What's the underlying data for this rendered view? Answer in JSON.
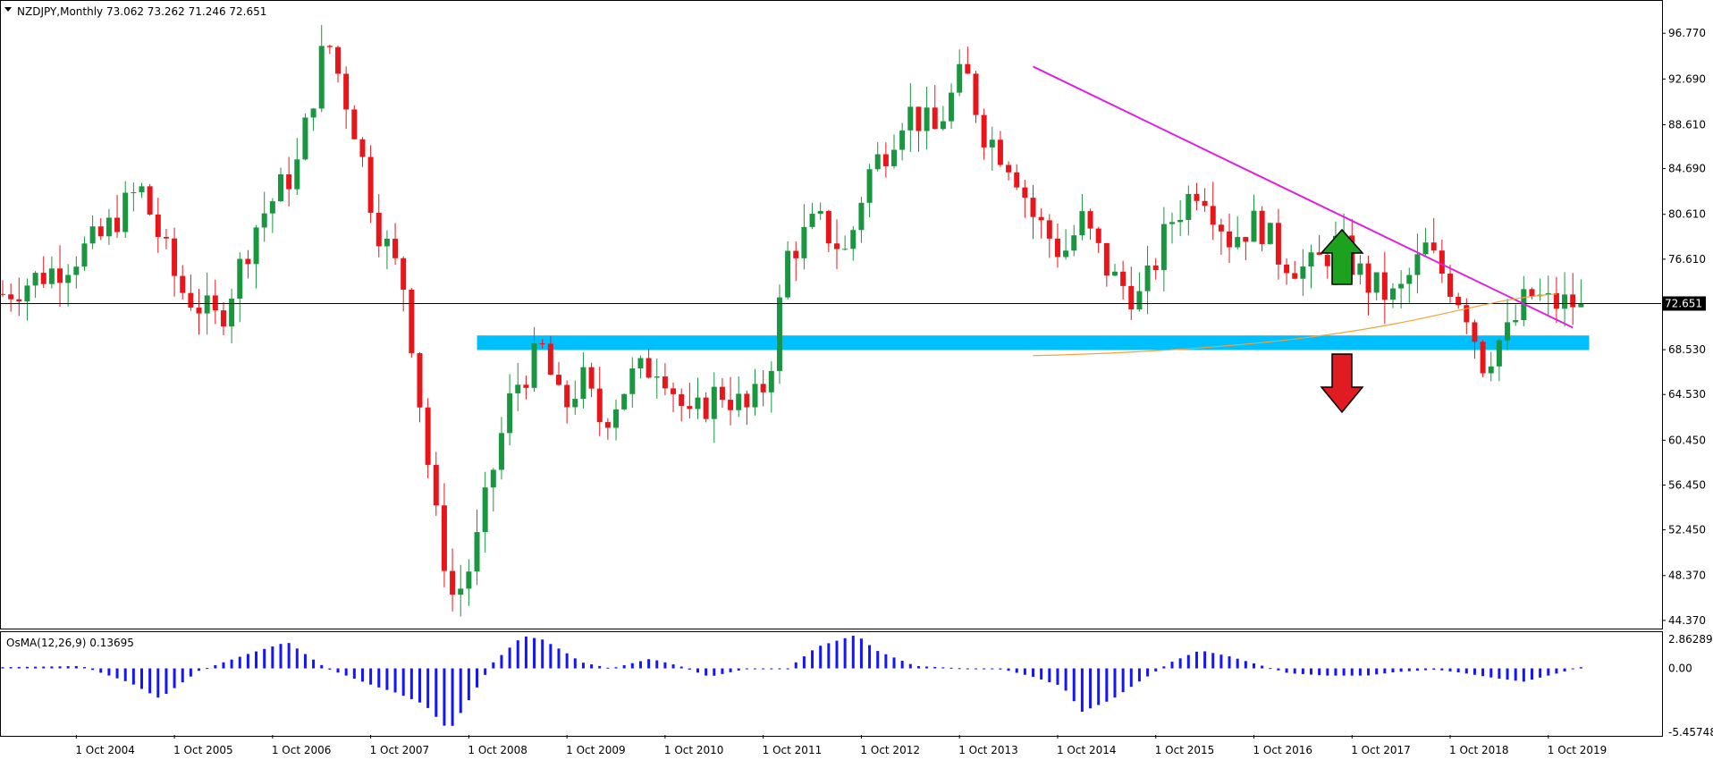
{
  "header": {
    "symbol_label": "NZDJPY,Monthly",
    "ohlc_label": "73.062 73.262 71.246 72.651"
  },
  "osma": {
    "label": "OsMA(12,26,9) 0.13695"
  },
  "colors": {
    "bull": "#1a9641",
    "bear": "#e8161b",
    "trendline": "#e020e0",
    "support_zone": "#00bfff",
    "ma": "#f2a33a",
    "osma_bars": "#1414ff",
    "arrow_up": "#1ca21c",
    "arrow_down": "#e11b22"
  },
  "chart_data": {
    "type": "candlestick",
    "title": "NZDJPY,Monthly",
    "price_axis_ticks": [
      "96.770",
      "92.690",
      "88.610",
      "84.690",
      "80.610",
      "76.610",
      "72.651",
      "68.530",
      "64.530",
      "60.450",
      "56.450",
      "52.450",
      "48.370",
      "44.370"
    ],
    "price_tick_values": [
      96.77,
      92.69,
      88.61,
      84.69,
      80.61,
      76.61,
      68.53,
      64.53,
      60.45,
      56.45,
      52.45,
      48.37,
      44.37
    ],
    "current_price_label": "72.651",
    "current_price": 72.651,
    "ylim": [
      43.8,
      99.5
    ],
    "x_labels": [
      "1 Oct 2004",
      "1 Oct 2005",
      "1 Oct 2006",
      "1 Oct 2007",
      "1 Oct 2008",
      "1 Oct 2009",
      "1 Oct 2010",
      "1 Oct 2011",
      "1 Oct 2012",
      "1 Oct 2013",
      "1 Oct 2014",
      "1 Oct 2015",
      "1 Oct 2016",
      "1 Oct 2017",
      "1 Oct 2018",
      "1 Oct 2019"
    ],
    "x_range_years": [
      2004.0,
      2020.9
    ],
    "candles_anchor": {
      "t": [
        2004.0,
        2004.6,
        2005.0,
        2005.4,
        2005.8,
        2006.2,
        2006.6,
        2007.0,
        2007.3,
        2007.6,
        2007.8,
        2008.1,
        2008.4,
        2008.6,
        2008.8,
        2009.0,
        2009.2,
        2009.5,
        2009.7,
        2009.9,
        2010.1,
        2010.4,
        2010.7,
        2011.0,
        2011.3,
        2011.6,
        2011.8,
        2012.0,
        2012.3,
        2012.6,
        2012.8,
        2013.0,
        2013.2,
        2013.5,
        2013.8,
        2014.0,
        2014.3,
        2014.5,
        2014.8,
        2015.0,
        2015.3,
        2015.6,
        2015.9,
        2016.2,
        2016.5,
        2016.8,
        2017.0,
        2017.3,
        2017.6,
        2017.9,
        2018.2,
        2018.5,
        2018.7,
        2018.9,
        2019.1,
        2019.2,
        2019.35,
        2019.55,
        2019.75,
        2019.9,
        2020.0,
        2020.1
      ],
      "close": [
        73.5,
        76.0,
        78.5,
        83.0,
        74.0,
        71.0,
        80.0,
        85.0,
        96.5,
        88.0,
        80.0,
        74.0,
        54.0,
        46.0,
        50.0,
        58.0,
        65.0,
        68.5,
        63.0,
        66.0,
        62.0,
        66.0,
        67.5,
        62.0,
        65.0,
        63.0,
        66.0,
        77.0,
        80.0,
        77.0,
        84.0,
        86.5,
        90.0,
        88.0,
        93.5,
        88.0,
        85.0,
        80.5,
        77.0,
        80.0,
        75.0,
        73.0,
        80.0,
        83.5,
        78.5,
        80.0,
        77.0,
        75.5,
        78.0,
        74.5,
        73.0,
        77.5,
        75.0,
        72.5,
        67.0,
        69.0,
        70.0,
        73.5,
        72.651,
        72.651,
        72.651,
        72.651
      ]
    },
    "trendline": {
      "from": [
        "Jul 2014",
        93.8
      ],
      "to": [
        "Jan 2020",
        70.5
      ]
    },
    "support_zone": {
      "low": 68.5,
      "high": 69.8,
      "from": "Nov 2008",
      "to": "Mar 2020"
    },
    "moving_average_segment": {
      "from": [
        "Jul 2014",
        68.0
      ],
      "to": [
        "Nov 2019",
        73.5
      ]
    },
    "osma": {
      "name": "OsMA(12,26,9)",
      "last_value": 0.13695,
      "axis_ticks": [
        "2.86289",
        "0.00",
        "-5.45748"
      ],
      "ylim": [
        -5.45748,
        2.86289
      ],
      "anchors": {
        "t": [
          2004.0,
          2004.8,
          2005.3,
          2005.6,
          2006.0,
          2006.5,
          2006.9,
          2007.3,
          2007.8,
          2008.0,
          2008.3,
          2008.55,
          2008.8,
          2009.0,
          2009.3,
          2009.5,
          2009.7,
          2009.9,
          2010.2,
          2010.6,
          2010.9,
          2011.2,
          2011.6,
          2012.0,
          2012.3,
          2012.7,
          2012.9,
          2013.3,
          2013.8,
          2014.2,
          2014.5,
          2014.8,
          2015.0,
          2015.3,
          2015.6,
          2015.9,
          2016.2,
          2016.5,
          2016.8,
          2017.1,
          2017.5,
          2017.9,
          2018.2,
          2018.6,
          2018.9,
          2019.2,
          2019.5,
          2019.8,
          2020.1
        ],
        "v": [
          0.1,
          0.2,
          -1.2,
          -2.5,
          -0.2,
          1.2,
          2.2,
          0.0,
          -1.5,
          -2.0,
          -3.0,
          -5.2,
          -2.0,
          0.5,
          2.7,
          2.4,
          1.5,
          0.5,
          0.0,
          0.8,
          0.2,
          -0.7,
          0.0,
          0.0,
          1.8,
          2.8,
          1.5,
          0.2,
          0.0,
          -0.1,
          -0.7,
          -1.5,
          -3.6,
          -2.6,
          -1.0,
          0.5,
          1.5,
          1.0,
          0.3,
          -0.4,
          -0.6,
          -0.6,
          -0.3,
          -0.1,
          -0.4,
          -0.8,
          -1.1,
          -0.5,
          0.13695
        ]
      }
    }
  }
}
